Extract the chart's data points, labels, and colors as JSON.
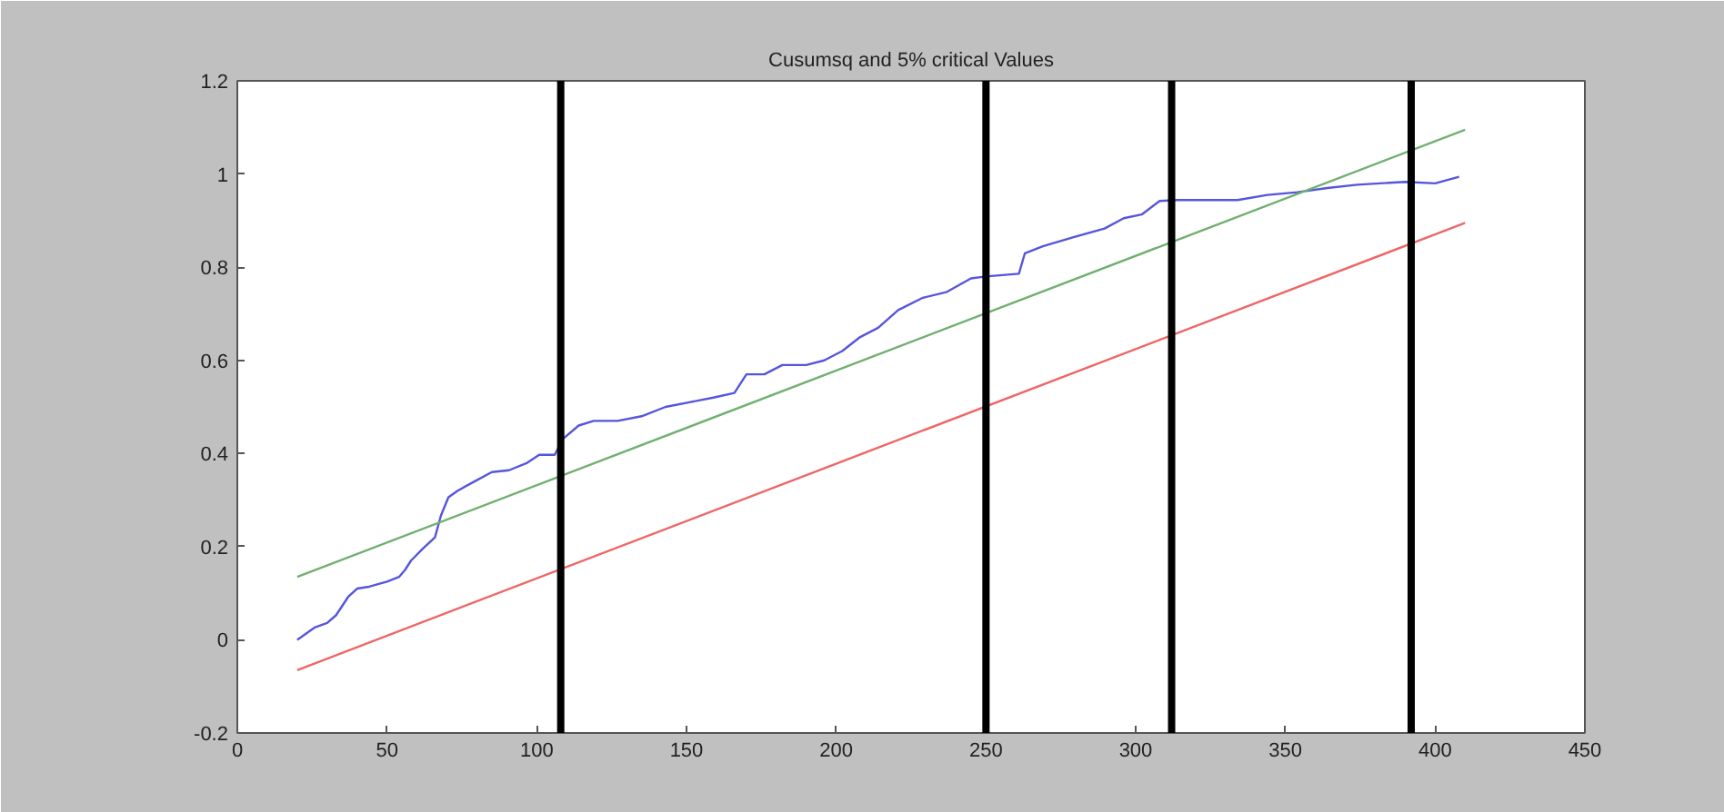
{
  "chart_data": {
    "type": "line",
    "title": "Cusumsq and 5% critical Values",
    "xlim": [
      0,
      450
    ],
    "xticks": [
      0,
      50,
      100,
      150,
      200,
      250,
      300,
      350,
      400,
      450
    ],
    "ylim": [
      -0.2,
      1.2
    ],
    "yticks": [
      {
        "value": -0.2,
        "label": "-0.2"
      },
      0,
      {
        "value": 0.2,
        "label": "0.2"
      },
      {
        "value": 0.4,
        "label": "0.4"
      },
      {
        "value": 0.6,
        "label": "0.6"
      },
      {
        "value": 0.8,
        "label": "0.8"
      },
      1,
      {
        "value": 1.2,
        "label": "1.2"
      }
    ],
    "grid": false,
    "series": [
      {
        "color": "#5555dd",
        "x": [
          20,
          26,
          30,
          33,
          37,
          40,
          44,
          50,
          54,
          56,
          58,
          62,
          66,
          68,
          70.5,
          73.6,
          78.6,
          85,
          90.7,
          96.8,
          100.8,
          106,
          108.5,
          114,
          119,
          127,
          135,
          143,
          151,
          159,
          166,
          170,
          176,
          182,
          190,
          196,
          202,
          208,
          214,
          220.7,
          228.8,
          237,
          245,
          250,
          261,
          263,
          269,
          279,
          289.6,
          296,
          302,
          308,
          314,
          334,
          344,
          354,
          364,
          374,
          390,
          400,
          408
        ],
        "values": [
          0,
          0.027,
          0.036,
          0.053,
          0.092,
          0.11,
          0.114,
          0.125,
          0.135,
          0.15,
          0.17,
          0.196,
          0.22,
          0.267,
          0.306,
          0.32,
          0.338,
          0.36,
          0.364,
          0.38,
          0.397,
          0.397,
          0.43,
          0.46,
          0.47,
          0.47,
          0.48,
          0.5,
          0.51,
          0.52,
          0.53,
          0.57,
          0.57,
          0.59,
          0.59,
          0.6,
          0.62,
          0.65,
          0.67,
          0.708,
          0.734,
          0.747,
          0.776,
          0.78,
          0.786,
          0.83,
          0.845,
          0.864,
          0.883,
          0.905,
          0.913,
          0.942,
          0.944,
          0.944,
          0.955,
          0.961,
          0.97,
          0.977,
          0.983,
          0.98,
          0.994
        ]
      },
      {
        "color": "#70b070",
        "x": [
          20,
          410
        ],
        "values": [
          0.135,
          1.095
        ]
      },
      {
        "color": "#ee6666",
        "x": [
          20,
          410
        ],
        "values": [
          -0.065,
          0.895
        ]
      }
    ],
    "ref_lines": [
      {
        "axis": "x",
        "value": 108,
        "color": "#000000"
      },
      {
        "axis": "x",
        "value": 250,
        "color": "#000000"
      },
      {
        "axis": "x",
        "value": 312,
        "color": "#000000"
      },
      {
        "axis": "x",
        "value": 392,
        "color": "#000000"
      }
    ]
  }
}
